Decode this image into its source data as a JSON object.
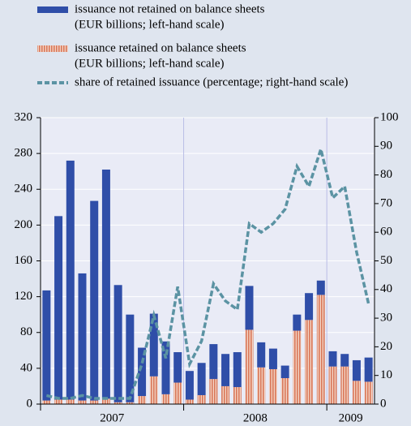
{
  "chart_data": {
    "type": "bar",
    "stacked": true,
    "categories": [
      "2007",
      "2007",
      "2007",
      "2007",
      "2007",
      "2007",
      "2007",
      "2007",
      "2007",
      "2007",
      "2007",
      "2007",
      "2008",
      "2008",
      "2008",
      "2008",
      "2008",
      "2008",
      "2008",
      "2008",
      "2008",
      "2008",
      "2008",
      "2008",
      "2009",
      "2009",
      "2009",
      "2009"
    ],
    "series": [
      {
        "name": "issuance not retained on balance sheets",
        "note": "(EUR billions; left-hand scale)",
        "color": "#2f4ea8",
        "values": [
          123,
          205,
          267,
          142,
          223,
          256,
          131,
          98,
          54,
          70,
          59,
          34,
          32,
          36,
          39,
          36,
          39,
          49,
          28,
          23,
          14,
          18,
          30,
          16,
          17,
          14,
          23,
          27
        ]
      },
      {
        "name": "issuance retained on balance sheets",
        "note": "(EUR billions; left-hand scale)",
        "color": "#e59a7e",
        "values": [
          4,
          5,
          5,
          4,
          4,
          6,
          2,
          2,
          9,
          31,
          11,
          24,
          5,
          10,
          28,
          20,
          19,
          83,
          41,
          39,
          29,
          82,
          94,
          122,
          42,
          42,
          26,
          25
        ]
      },
      {
        "name": "share of retained issuance (percentage; right-hand scale)",
        "type": "line",
        "axis": "y2",
        "color": "#5b93a3",
        "values": [
          3,
          2,
          2,
          3,
          2,
          2,
          2,
          2,
          14,
          31,
          16,
          41,
          14,
          22,
          42,
          36,
          33,
          63,
          60,
          63,
          68,
          83,
          76,
          89,
          72,
          76,
          53,
          35
        ]
      }
    ],
    "ylim": [
      0,
      320
    ],
    "yticks": [
      0,
      40,
      80,
      120,
      160,
      200,
      240,
      280,
      320
    ],
    "y2lim": [
      0,
      100
    ],
    "y2ticks": [
      0,
      10,
      20,
      30,
      40,
      50,
      60,
      70,
      80,
      90,
      100
    ],
    "grid": true
  }
}
